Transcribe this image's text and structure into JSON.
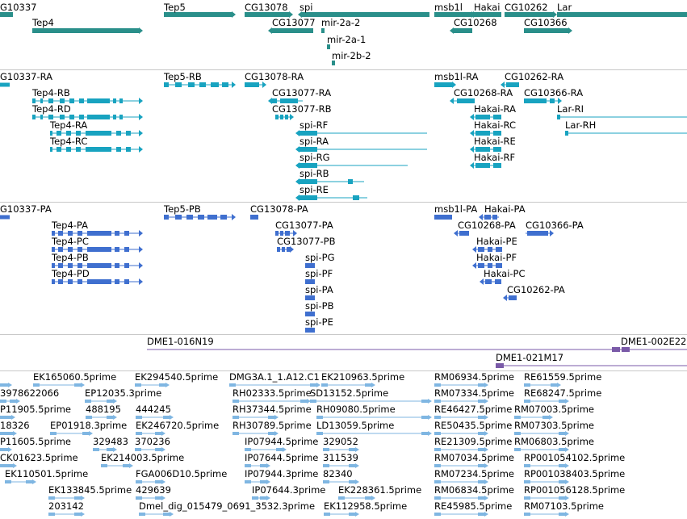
{
  "colors": {
    "gene": "#2a8f8a",
    "transcript": "#18a3c0",
    "protein": "#3f6fcf",
    "clone": "#7a5aa8",
    "est": "#7fb6e2",
    "separator": "#c8c8c8"
  },
  "tracks": {
    "genes": [
      {
        "label": "G10337"
      },
      {
        "label": "Tep4"
      },
      {
        "label": "Tep5"
      },
      {
        "label": "CG13078"
      },
      {
        "label": "spi"
      },
      {
        "label": "CG13077"
      },
      {
        "label": "mir-2a-2"
      },
      {
        "label": "mir-2a-1"
      },
      {
        "label": "mir-2b-2"
      },
      {
        "label": "msb1l"
      },
      {
        "label": "Hakai"
      },
      {
        "label": "CG10262"
      },
      {
        "label": "Lar"
      },
      {
        "label": "CG10268"
      },
      {
        "label": "CG10366"
      }
    ],
    "transcripts": [
      {
        "label": "G10337-RA"
      },
      {
        "label": "Tep4-RB"
      },
      {
        "label": "Tep4-RD"
      },
      {
        "label": "Tep4-RA"
      },
      {
        "label": "Tep4-RC"
      },
      {
        "label": "Tep5-RB"
      },
      {
        "label": "CG13078-RA"
      },
      {
        "label": "CG13077-RA"
      },
      {
        "label": "CG13077-RB"
      },
      {
        "label": "spi-RF"
      },
      {
        "label": "spi-RA"
      },
      {
        "label": "spi-RG"
      },
      {
        "label": "spi-RB"
      },
      {
        "label": "spi-RE"
      },
      {
        "label": "msb1l-RA"
      },
      {
        "label": "CG10262-RA"
      },
      {
        "label": "CG10268-RA"
      },
      {
        "label": "CG10366-RA"
      },
      {
        "label": "Hakai-RA"
      },
      {
        "label": "Hakai-RC"
      },
      {
        "label": "Hakai-RE"
      },
      {
        "label": "Hakai-RF"
      },
      {
        "label": "Lar-RI"
      },
      {
        "label": "Lar-RH"
      }
    ],
    "proteins": [
      {
        "label": "G10337-PA"
      },
      {
        "label": "Tep4-PA"
      },
      {
        "label": "Tep4-PC"
      },
      {
        "label": "Tep4-PB"
      },
      {
        "label": "Tep4-PD"
      },
      {
        "label": "Tep5-PB"
      },
      {
        "label": "CG13078-PA"
      },
      {
        "label": "CG13077-PA"
      },
      {
        "label": "CG13077-PB"
      },
      {
        "label": "spi-PG"
      },
      {
        "label": "spi-PF"
      },
      {
        "label": "spi-PA"
      },
      {
        "label": "spi-PB"
      },
      {
        "label": "spi-PE"
      },
      {
        "label": "msb1l-PA"
      },
      {
        "label": "Hakai-PA"
      },
      {
        "label": "CG10268-PA"
      },
      {
        "label": "CG10366-PA"
      },
      {
        "label": "Hakai-PE"
      },
      {
        "label": "Hakai-PF"
      },
      {
        "label": "Hakai-PC"
      },
      {
        "label": "CG10262-PA"
      }
    ],
    "clones": [
      {
        "label": "DME1-016N19"
      },
      {
        "label": "DME1-002E22"
      },
      {
        "label": "DME1-021M17"
      }
    ],
    "ests": [
      {
        "label": "EK165060.5prime"
      },
      {
        "label": "EK294540.5prime"
      },
      {
        "label": "DMG3A.1_1.A12.C1"
      },
      {
        "label": "EK210963.5prime"
      },
      {
        "label": "RM06934.5prime"
      },
      {
        "label": "RE61559.5prime"
      },
      {
        "label": "3978622066"
      },
      {
        "label": "EP12035.3prime"
      },
      {
        "label": "RH02333.5prime"
      },
      {
        "label": "SD13152.5prime"
      },
      {
        "label": "RM07334.5prime"
      },
      {
        "label": "RE68247.5prime"
      },
      {
        "label": "P11905.5prime"
      },
      {
        "label": "488195"
      },
      {
        "label": "444245"
      },
      {
        "label": "RH37344.5prime"
      },
      {
        "label": "RH09080.5prime"
      },
      {
        "label": "RE46427.5prime"
      },
      {
        "label": "RM07003.5prime"
      },
      {
        "label": "18326"
      },
      {
        "label": "EP01918.3prime"
      },
      {
        "label": "EK246720.5prime"
      },
      {
        "label": "RH30789.5prime"
      },
      {
        "label": "LD13059.5prime"
      },
      {
        "label": "RE50435.5prime"
      },
      {
        "label": "RM07303.5prime"
      },
      {
        "label": "P11605.5prime"
      },
      {
        "label": "329483"
      },
      {
        "label": "370236"
      },
      {
        "label": "IP07944.5prime"
      },
      {
        "label": "329052"
      },
      {
        "label": "RE21309.5prime"
      },
      {
        "label": "RM06803.5prime"
      },
      {
        "label": "CK01623.5prime"
      },
      {
        "label": "EK214003.5prime"
      },
      {
        "label": "IP07644.5prime"
      },
      {
        "label": "311539"
      },
      {
        "label": "RM07034.5prime"
      },
      {
        "label": "RP001054102.5prime"
      },
      {
        "label": "EK110501.5prime"
      },
      {
        "label": "FGA006D10.5prime"
      },
      {
        "label": "IP07944.3prime"
      },
      {
        "label": "82340"
      },
      {
        "label": "RM07234.5prime"
      },
      {
        "label": "RP001038403.5prime"
      },
      {
        "label": "EK133845.5prime"
      },
      {
        "label": "429639"
      },
      {
        "label": "IP07644.3prime"
      },
      {
        "label": "EK228361.5prime"
      },
      {
        "label": "RM06834.5prime"
      },
      {
        "label": "RP001056128.5prime"
      },
      {
        "label": "203142"
      },
      {
        "label": "Dmel_dig_015479_0691_3532.3prime"
      },
      {
        "label": "EK112958.5prime"
      },
      {
        "label": "RE45985.5prime"
      },
      {
        "label": "RM07103.5prime"
      }
    ]
  }
}
